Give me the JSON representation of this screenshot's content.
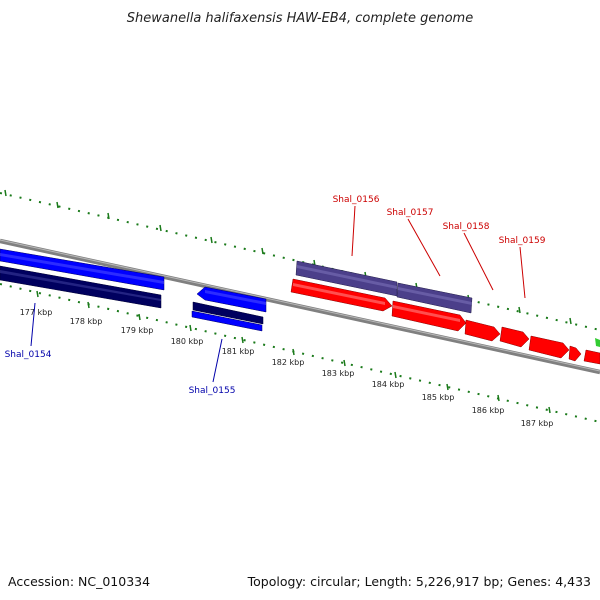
{
  "title": "Shewanella halifaxensis HAW-EB4, complete genome",
  "footer": {
    "accession": "Accession: NC_010334",
    "summary": "Topology: circular; Length: 5,226,917 bp; Genes: 4,433"
  },
  "colors": {
    "forward_cds": "#ff0000",
    "reverse_cds": "#0000ff",
    "forward_gene": "#4b3f8a",
    "reverse_gene": "#00005f",
    "backbone": "#808080",
    "ticks": "#1a7a1a",
    "forward_label": "#cc0000",
    "reverse_label": "#0000aa"
  },
  "ticks": [
    {
      "label": "177 kbp"
    },
    {
      "label": "178 kbp"
    },
    {
      "label": "179 kbp"
    },
    {
      "label": "180 kbp"
    },
    {
      "label": "181 kbp"
    },
    {
      "label": "182 kbp"
    },
    {
      "label": "183 kbp"
    },
    {
      "label": "184 kbp"
    },
    {
      "label": "185 kbp"
    },
    {
      "label": "186 kbp"
    },
    {
      "label": "187 kbp"
    }
  ],
  "genes": [
    {
      "name": "Shal_0154",
      "strand": "reverse"
    },
    {
      "name": "Shal_0155",
      "strand": "reverse"
    },
    {
      "name": "Shal_0156",
      "strand": "forward"
    },
    {
      "name": "Shal_0157",
      "strand": "forward"
    },
    {
      "name": "Shal_0158",
      "strand": "forward"
    },
    {
      "name": "Shal_0159",
      "strand": "forward"
    }
  ]
}
